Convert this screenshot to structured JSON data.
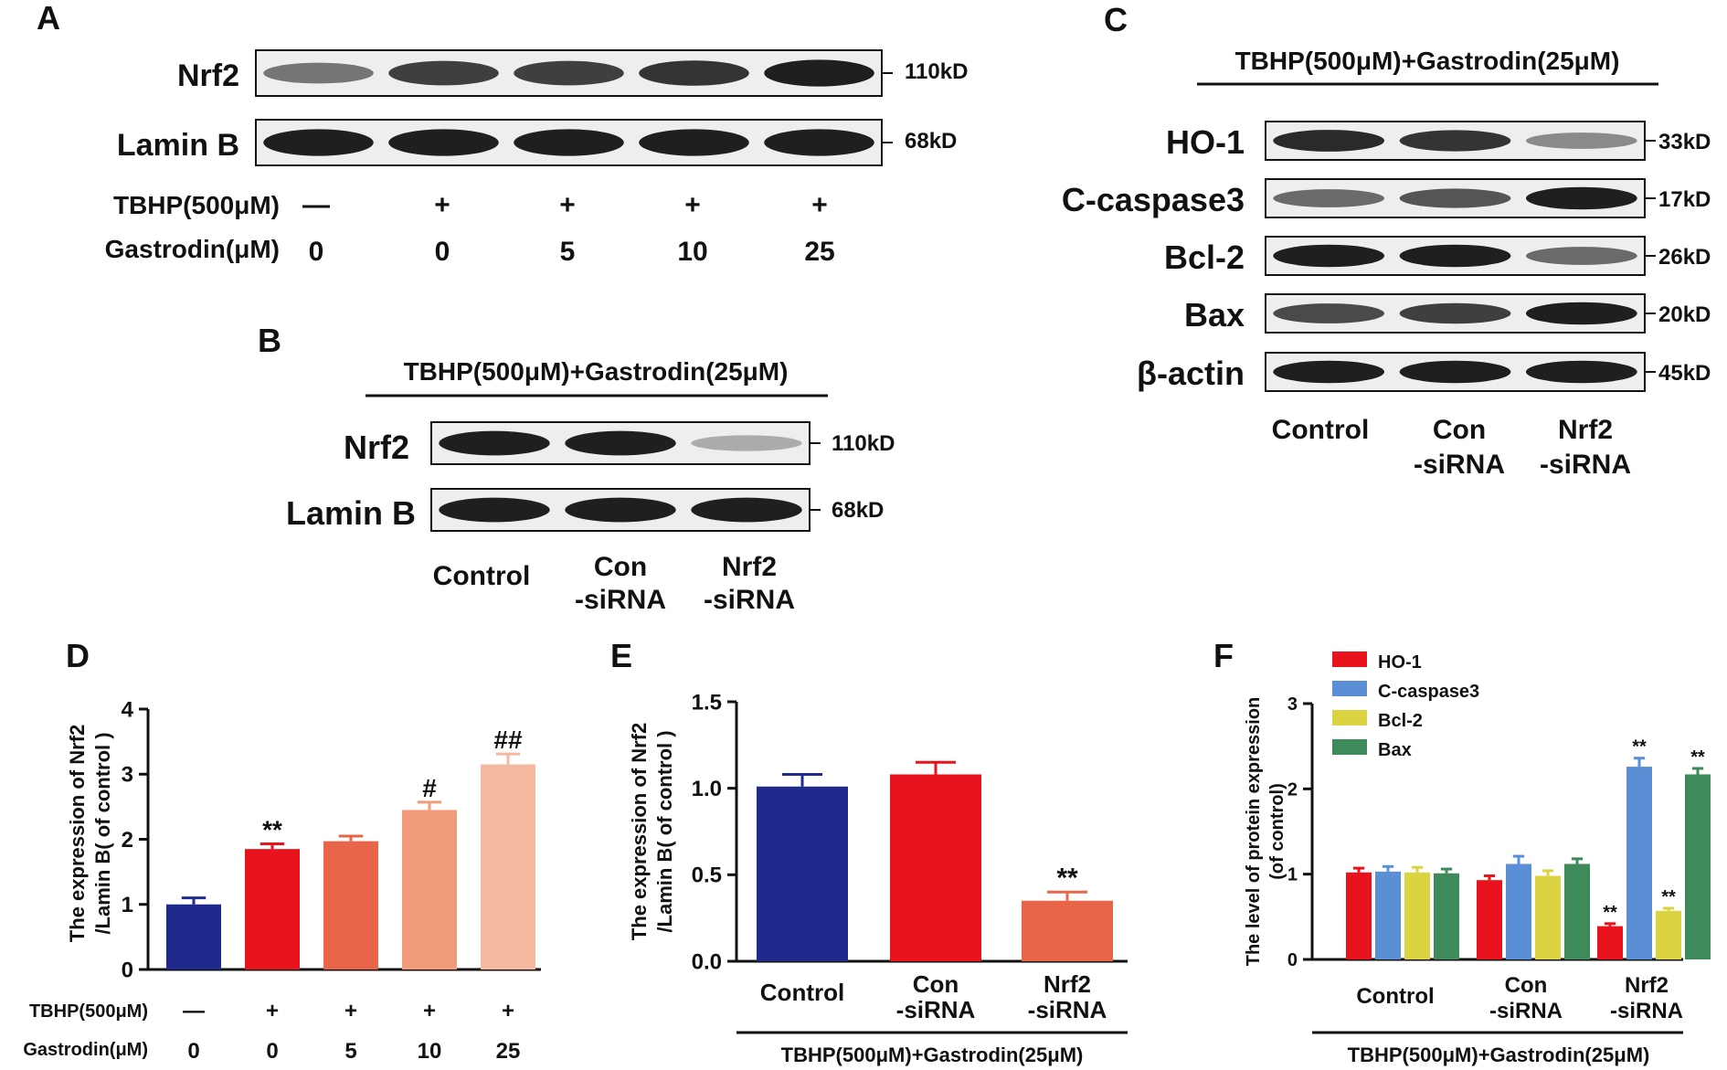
{
  "panel_a": {
    "letter": "A",
    "bands": [
      {
        "name": "Nrf2",
        "kd": "110kD",
        "intensities": [
          0.55,
          0.8,
          0.8,
          0.85,
          0.95
        ]
      },
      {
        "name": "Lamin B",
        "kd": "68kD",
        "intensities": [
          0.95,
          0.95,
          0.95,
          0.95,
          0.95
        ]
      }
    ],
    "treatments": [
      {
        "label": "TBHP(500μM)",
        "values": [
          "—",
          "+",
          "+",
          "+",
          "+"
        ]
      },
      {
        "label": "Gastrodin(μM)",
        "values": [
          "0",
          "0",
          "5",
          "10",
          "25"
        ]
      }
    ]
  },
  "panel_b": {
    "letter": "B",
    "header": "TBHP(500μM)+Gastrodin(25μM)",
    "bands": [
      {
        "name": "Nrf2",
        "kd": "110kD",
        "intensities": [
          0.95,
          0.95,
          0.3
        ]
      },
      {
        "name": "Lamin B",
        "kd": "68kD",
        "intensities": [
          0.95,
          0.95,
          0.95
        ]
      }
    ],
    "lanes": [
      [
        "Control"
      ],
      [
        "Con",
        "-siRNA"
      ],
      [
        "Nrf2",
        "-siRNA"
      ]
    ]
  },
  "panel_c": {
    "letter": "C",
    "header": "TBHP(500μM)+Gastrodin(25μM)",
    "bands": [
      {
        "name": "HO-1",
        "kd": "33kD",
        "intensities": [
          0.9,
          0.85,
          0.45
        ]
      },
      {
        "name": "C-caspase3",
        "kd": "17kD",
        "intensities": [
          0.6,
          0.7,
          0.95
        ]
      },
      {
        "name": "Bcl-2",
        "kd": "26kD",
        "intensities": [
          0.95,
          0.95,
          0.6
        ]
      },
      {
        "name": "Bax",
        "kd": "20kD",
        "intensities": [
          0.75,
          0.8,
          0.95
        ]
      },
      {
        "name": "β-actin",
        "kd": "45kD",
        "intensities": [
          0.95,
          0.95,
          0.95
        ]
      }
    ],
    "lanes": [
      [
        "Control"
      ],
      [
        "Con",
        "-siRNA"
      ],
      [
        "Nrf2",
        "-siRNA"
      ]
    ]
  },
  "chart_data": [
    {
      "panel": "D",
      "type": "bar",
      "ylabel": [
        "The expression of Nrf2",
        "/Lamin B( of control )"
      ],
      "ylim": [
        0,
        4
      ],
      "yticks": [
        0,
        1,
        2,
        3,
        4
      ],
      "treatments": [
        {
          "label": "TBHP(500μM)",
          "values": [
            "—",
            "+",
            "+",
            "+",
            "+"
          ]
        },
        {
          "label": "Gastrodin(μM)",
          "values": [
            "0",
            "0",
            "5",
            "10",
            "25"
          ]
        }
      ],
      "values": [
        1.0,
        1.85,
        1.97,
        2.45,
        3.15
      ],
      "errors": [
        0.1,
        0.08,
        0.08,
        0.12,
        0.16
      ],
      "colors": [
        "#1f2a8c",
        "#e8131c",
        "#e8654a",
        "#f19b7a",
        "#f5b99f"
      ],
      "annotations": [
        "",
        "**",
        "",
        "#",
        "##"
      ]
    },
    {
      "panel": "E",
      "type": "bar",
      "ylabel": [
        "The expression of Nrf2",
        "/Lamin B( of control )"
      ],
      "ylim": [
        0,
        1.5
      ],
      "yticks": [
        "0.0",
        "0.5",
        "1.0",
        "1.5"
      ],
      "categories": [
        [
          "Control"
        ],
        [
          "Con",
          "-siRNA"
        ],
        [
          "Nrf2",
          "-siRNA"
        ]
      ],
      "values": [
        1.01,
        1.08,
        0.35
      ],
      "errors": [
        0.07,
        0.07,
        0.05
      ],
      "colors": [
        "#1f2a8c",
        "#e8131c",
        "#e8654a"
      ],
      "annotations": [
        "",
        "",
        "**"
      ],
      "footer": "TBHP(500μM)+Gastrodin(25μM)"
    },
    {
      "panel": "F",
      "type": "bar",
      "ylabel": [
        "The level of protein expression",
        "(of control)"
      ],
      "ylim": [
        0,
        3
      ],
      "yticks": [
        0,
        1,
        2,
        3
      ],
      "categories": [
        [
          "Control"
        ],
        [
          "Con",
          "-siRNA"
        ],
        [
          "Nrf2",
          "-siRNA"
        ]
      ],
      "series": [
        {
          "name": "HO-1",
          "color": "#e8131c",
          "values": [
            1.02,
            0.93,
            0.39
          ],
          "errors": [
            0.05,
            0.05,
            0.03
          ],
          "annotations": [
            "",
            "",
            "**"
          ]
        },
        {
          "name": "C-caspase3",
          "color": "#5a8fd6",
          "values": [
            1.03,
            1.12,
            2.26
          ],
          "errors": [
            0.06,
            0.09,
            0.1
          ],
          "annotations": [
            "",
            "",
            "**"
          ]
        },
        {
          "name": "Bcl-2",
          "color": "#dcd342",
          "values": [
            1.02,
            0.98,
            0.57
          ],
          "errors": [
            0.06,
            0.06,
            0.03
          ],
          "annotations": [
            "",
            "",
            "**"
          ]
        },
        {
          "name": "Bax",
          "color": "#3f8a5a",
          "values": [
            1.01,
            1.12,
            2.17
          ],
          "errors": [
            0.05,
            0.06,
            0.07
          ],
          "annotations": [
            "",
            "",
            "**"
          ]
        }
      ],
      "legend_position": "top-left",
      "footer": "TBHP(500μM)+Gastrodin(25μM)"
    }
  ]
}
